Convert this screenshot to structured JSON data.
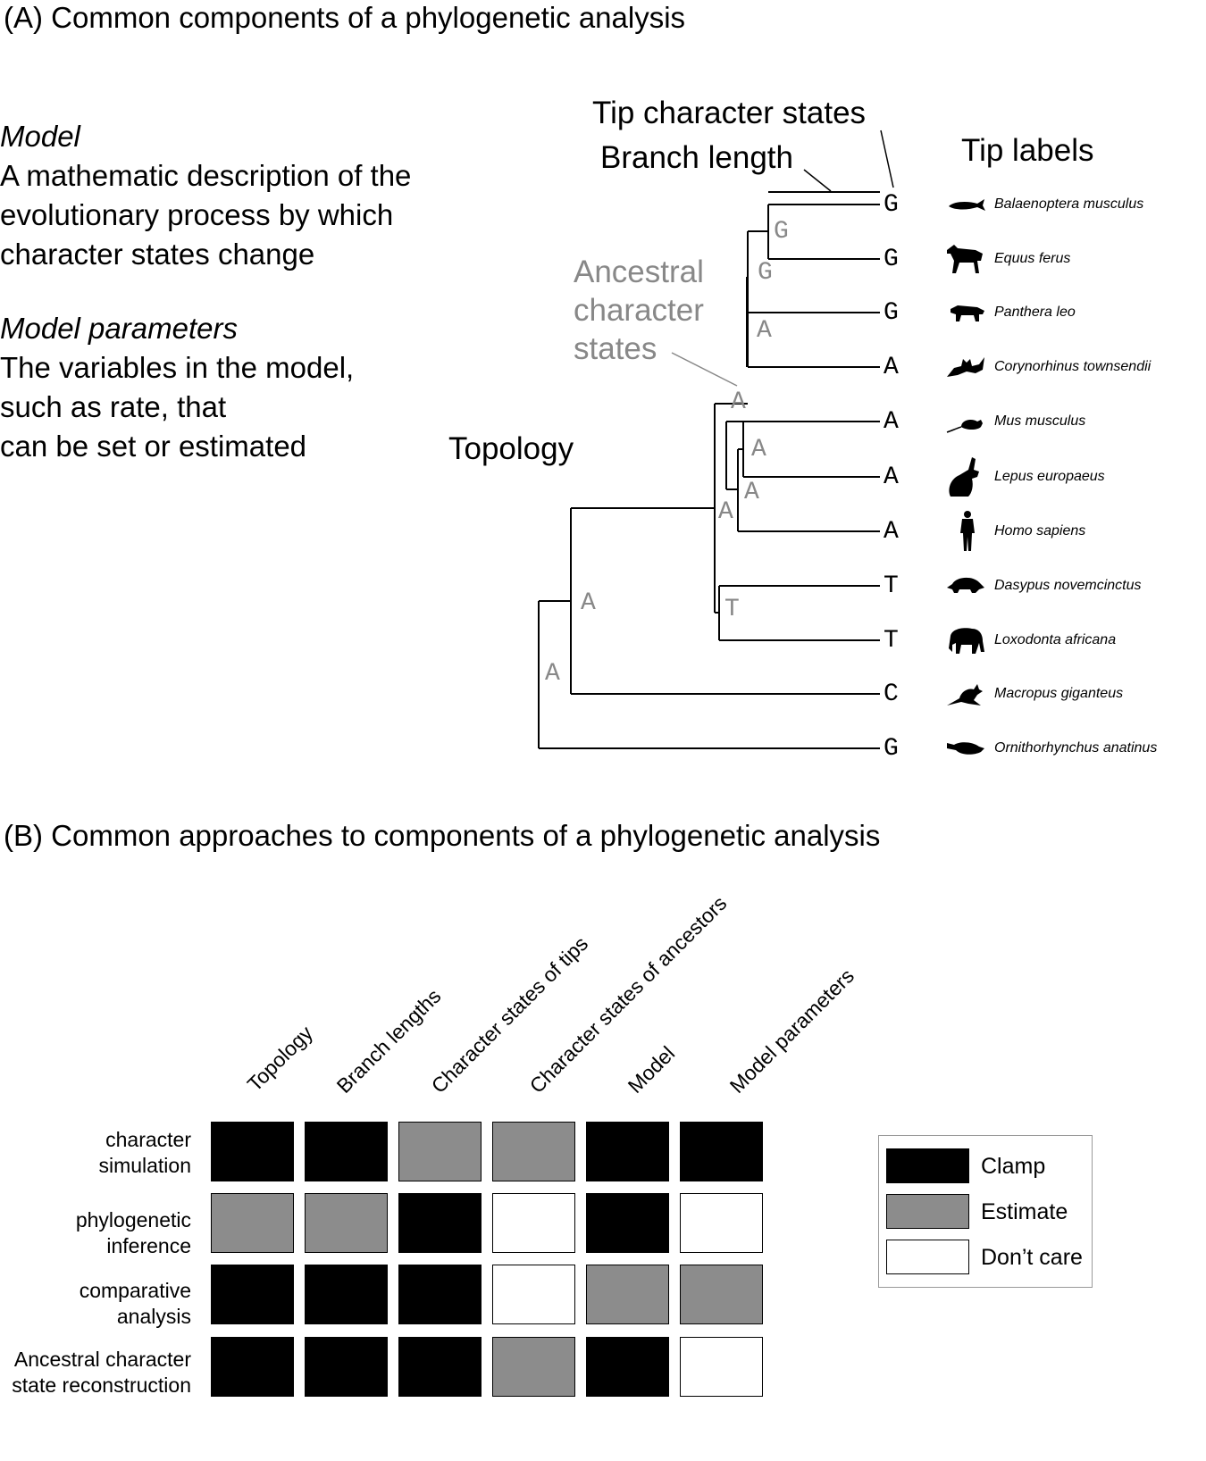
{
  "panel_a": {
    "title": "(A) Common components of a phylogenetic analysis",
    "model_term": "Model",
    "model_desc": [
      "A mathematic description of the",
      "evolutionary process by which",
      "character states change"
    ],
    "params_term": "Model parameters",
    "params_desc": [
      "The variables in the model,",
      "such as rate, that",
      "can be set or estimated"
    ],
    "label_tip_states": "Tip character states",
    "label_branch_length": "Branch length",
    "label_tip_labels": "Tip labels",
    "label_ancestral": [
      "Ancestral",
      "character",
      "states"
    ],
    "label_topology": "Topology",
    "tips": [
      {
        "state": "G",
        "name": "Balaenoptera musculus",
        "silhouette": "whale-icon"
      },
      {
        "state": "G",
        "name": "Equus ferus",
        "silhouette": "horse-icon"
      },
      {
        "state": "G",
        "name": "Panthera leo",
        "silhouette": "lion-icon"
      },
      {
        "state": "A",
        "name": "Corynorhinus townsendii",
        "silhouette": "bat-icon"
      },
      {
        "state": "A",
        "name": "Mus musculus",
        "silhouette": "mouse-icon"
      },
      {
        "state": "A",
        "name": "Lepus europaeus",
        "silhouette": "hare-icon"
      },
      {
        "state": "A",
        "name": "Homo sapiens",
        "silhouette": "human-icon"
      },
      {
        "state": "T",
        "name": "Dasypus novemcinctus",
        "silhouette": "armadillo-icon"
      },
      {
        "state": "T",
        "name": "Loxodonta africana",
        "silhouette": "elephant-icon"
      },
      {
        "state": "C",
        "name": "Macropus giganteus",
        "silhouette": "kangaroo-icon"
      },
      {
        "state": "G",
        "name": "Ornithorhynchus anatinus",
        "silhouette": "platypus-icon"
      }
    ],
    "ancestral_states": [
      "G",
      "G",
      "A",
      "A",
      "A",
      "A",
      "A",
      "T",
      "A",
      "A"
    ]
  },
  "panel_b": {
    "title": "(B) Common approaches to components of a phylogenetic analysis",
    "columns": [
      "Topology",
      "Branch lengths",
      "Character states of tips",
      "Character states of ancestors",
      "Model",
      "Model parameters"
    ],
    "rows": [
      {
        "label": [
          "character",
          "simulation"
        ],
        "cells": [
          "clamp",
          "clamp",
          "estimate",
          "estimate",
          "clamp",
          "clamp"
        ]
      },
      {
        "label": [
          "phylogenetic",
          "inference"
        ],
        "cells": [
          "estimate",
          "estimate",
          "clamp",
          "dontcare",
          "clamp",
          "dontcare"
        ]
      },
      {
        "label": [
          "comparative",
          "analysis"
        ],
        "cells": [
          "clamp",
          "clamp",
          "clamp",
          "dontcare",
          "estimate",
          "estimate"
        ]
      },
      {
        "label": [
          "Ancestral character",
          "state reconstruction"
        ],
        "cells": [
          "clamp",
          "clamp",
          "clamp",
          "estimate",
          "clamp",
          "dontcare"
        ]
      }
    ],
    "legend": [
      {
        "key": "clamp",
        "label": "Clamp",
        "color": "#000000"
      },
      {
        "key": "estimate",
        "label": "Estimate",
        "color": "#8c8c8c"
      },
      {
        "key": "dontcare",
        "label": "Don’t care",
        "color": "#ffffff"
      }
    ]
  }
}
